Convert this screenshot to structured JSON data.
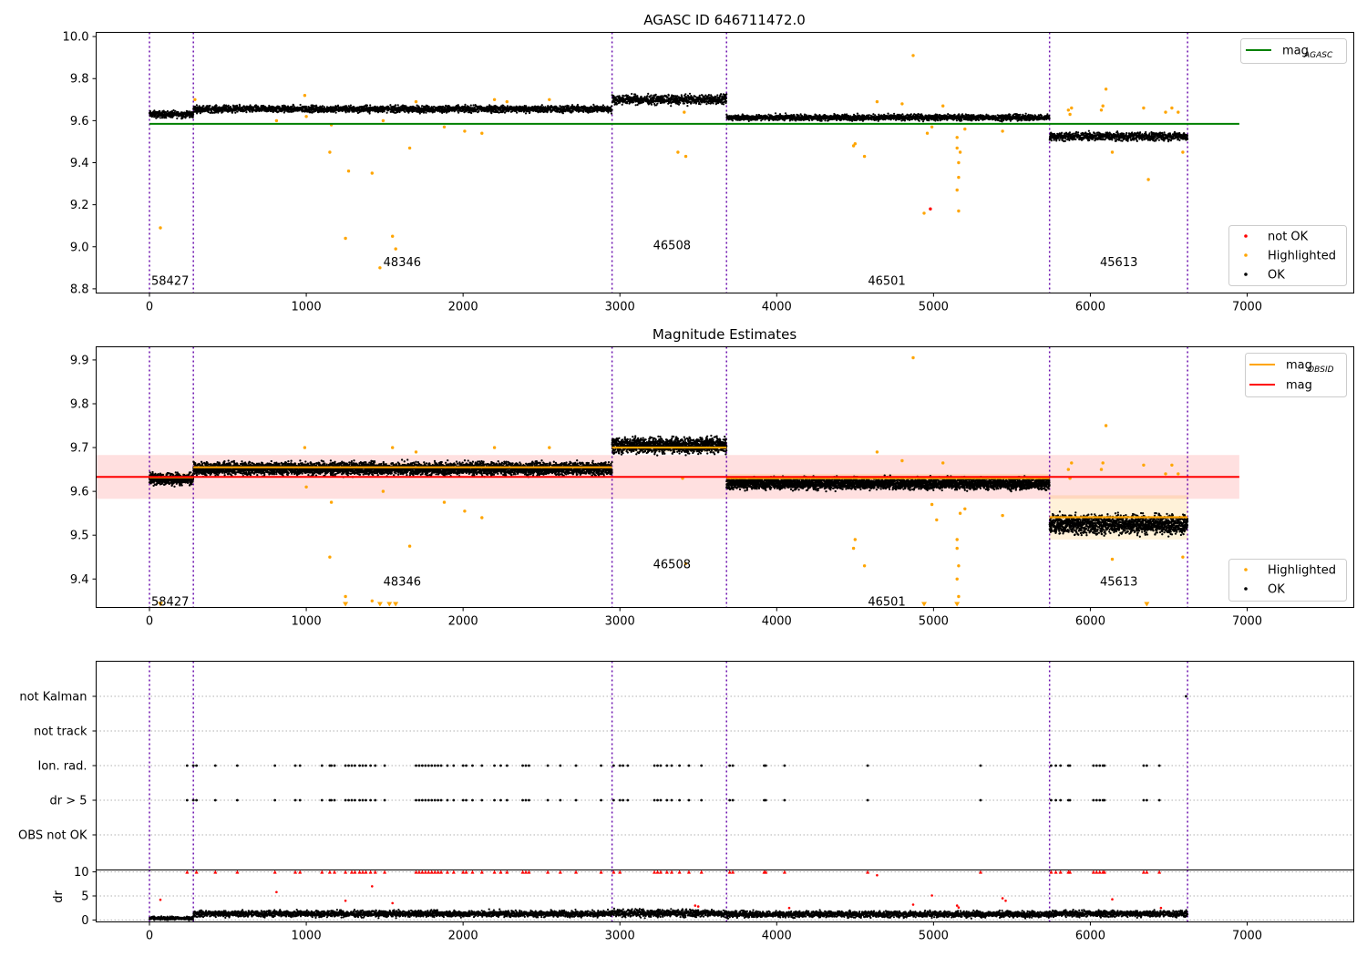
{
  "chart_data": [
    {
      "type": "scatter",
      "title": "AGASC ID 646711472.0",
      "xlim": [
        -340,
        7680
      ],
      "ylim": [
        8.78,
        10.02
      ],
      "x_ticks": [
        0,
        1000,
        2000,
        3000,
        4000,
        5000,
        6000,
        7000
      ],
      "y_ticks": [
        8.8,
        9.0,
        9.2,
        9.4,
        9.6,
        9.8,
        10.0
      ],
      "obs_boundaries": [
        0,
        280,
        2950,
        3680,
        5740,
        6620
      ],
      "obsid_labels": [
        {
          "text": "58427",
          "x": 0,
          "y": 8.84
        },
        {
          "text": "48346",
          "x": 1480,
          "y": 8.93
        },
        {
          "text": "46508",
          "x": 3200,
          "y": 9.01
        },
        {
          "text": "46501",
          "x": 4570,
          "y": 8.84
        },
        {
          "text": "45613",
          "x": 6050,
          "y": 8.93
        }
      ],
      "mag_agasc": 9.585,
      "mag_agasc_range": [
        0,
        6950
      ],
      "ok_segments": [
        {
          "x0": 0,
          "x1": 280,
          "mean": 9.63,
          "spread": 0.015
        },
        {
          "x0": 280,
          "x1": 2950,
          "mean": 9.655,
          "spread": 0.015
        },
        {
          "x0": 2950,
          "x1": 3680,
          "mean": 9.7,
          "spread": 0.02
        },
        {
          "x0": 3680,
          "x1": 5740,
          "mean": 9.615,
          "spread": 0.013
        },
        {
          "x0": 5740,
          "x1": 6620,
          "mean": 9.525,
          "spread": 0.018
        }
      ],
      "highlighted_points": [
        [
          70,
          9.09
        ],
        [
          290,
          9.7
        ],
        [
          810,
          9.6
        ],
        [
          990,
          9.72
        ],
        [
          1000,
          9.62
        ],
        [
          1150,
          9.45
        ],
        [
          1160,
          9.58
        ],
        [
          1250,
          9.04
        ],
        [
          1270,
          9.36
        ],
        [
          1420,
          9.35
        ],
        [
          1470,
          8.9
        ],
        [
          1490,
          9.6
        ],
        [
          1550,
          9.05
        ],
        [
          1570,
          8.99
        ],
        [
          1660,
          9.47
        ],
        [
          1700,
          9.69
        ],
        [
          1880,
          9.57
        ],
        [
          2010,
          9.55
        ],
        [
          2120,
          9.54
        ],
        [
          2200,
          9.7
        ],
        [
          2280,
          9.69
        ],
        [
          2550,
          9.7
        ],
        [
          3370,
          9.45
        ],
        [
          3420,
          9.43
        ],
        [
          3410,
          9.64
        ],
        [
          4490,
          9.48
        ],
        [
          4500,
          9.49
        ],
        [
          4560,
          9.43
        ],
        [
          4640,
          9.69
        ],
        [
          4870,
          9.91
        ],
        [
          4800,
          9.68
        ],
        [
          4940,
          9.16
        ],
        [
          4960,
          9.54
        ],
        [
          4990,
          9.57
        ],
        [
          5060,
          9.67
        ],
        [
          5150,
          9.52
        ],
        [
          5150,
          9.47
        ],
        [
          5160,
          9.4
        ],
        [
          5160,
          9.33
        ],
        [
          5150,
          9.27
        ],
        [
          5160,
          9.17
        ],
        [
          5170,
          9.45
        ],
        [
          5200,
          9.56
        ],
        [
          5440,
          9.55
        ],
        [
          5860,
          9.65
        ],
        [
          5880,
          9.66
        ],
        [
          5870,
          9.63
        ],
        [
          6070,
          9.65
        ],
        [
          6080,
          9.67
        ],
        [
          6100,
          9.75
        ],
        [
          6140,
          9.45
        ],
        [
          6340,
          9.66
        ],
        [
          6370,
          9.32
        ],
        [
          6480,
          9.64
        ],
        [
          6590,
          9.45
        ],
        [
          6520,
          9.66
        ],
        [
          6560,
          9.64
        ]
      ],
      "not_ok_points": [
        [
          4980,
          9.18
        ]
      ],
      "legend_lines": [
        {
          "label": "mag",
          "sub": "AGASC",
          "color": "#008000"
        }
      ],
      "legend_markers": [
        {
          "label": "not OK",
          "color": "#ff0000"
        },
        {
          "label": "Highlighted",
          "color": "#ffa500"
        },
        {
          "label": "OK",
          "color": "#000000"
        }
      ]
    },
    {
      "type": "scatter",
      "title": "Magnitude Estimates",
      "xlim": [
        -340,
        7680
      ],
      "ylim": [
        9.335,
        9.93
      ],
      "x_ticks": [
        0,
        1000,
        2000,
        3000,
        4000,
        5000,
        6000,
        7000
      ],
      "y_ticks": [
        9.4,
        9.5,
        9.6,
        9.7,
        9.8,
        9.9
      ],
      "obs_boundaries": [
        0,
        280,
        2950,
        3680,
        5740,
        6620
      ],
      "obsid_labels": [
        {
          "text": "58427",
          "x": 0,
          "y": 9.35
        },
        {
          "text": "48346",
          "x": 1480,
          "y": 9.395
        },
        {
          "text": "46508",
          "x": 3200,
          "y": 9.435
        },
        {
          "text": "46501",
          "x": 4570,
          "y": 9.35
        },
        {
          "text": "45613",
          "x": 6050,
          "y": 9.395
        }
      ],
      "mag": 9.633,
      "mag_band": [
        9.583,
        9.683
      ],
      "mag_range": [
        -340,
        6950
      ],
      "mag_obsid": [
        {
          "x0": 0,
          "x1": 280,
          "value": 9.632,
          "band": [
            9.622,
            9.642
          ]
        },
        {
          "x0": 280,
          "x1": 2950,
          "value": 9.655,
          "band": [
            9.645,
            9.665
          ]
        },
        {
          "x0": 2950,
          "x1": 3680,
          "value": 9.7,
          "band": [
            9.69,
            9.71
          ]
        },
        {
          "x0": 3680,
          "x1": 5740,
          "value": 9.63,
          "band": [
            9.62,
            9.64
          ]
        },
        {
          "x0": 5740,
          "x1": 6620,
          "value": 9.541,
          "band": [
            9.49,
            9.591
          ]
        }
      ],
      "ok_segments": [
        {
          "x0": 0,
          "x1": 280,
          "mean": 9.628,
          "spread": 0.012
        },
        {
          "x0": 280,
          "x1": 2950,
          "mean": 9.652,
          "spread": 0.013
        },
        {
          "x0": 2950,
          "x1": 3680,
          "mean": 9.705,
          "spread": 0.016
        },
        {
          "x0": 3680,
          "x1": 5740,
          "mean": 9.618,
          "spread": 0.012
        },
        {
          "x0": 5740,
          "x1": 6620,
          "mean": 9.525,
          "spread": 0.02
        }
      ],
      "highlighted_points": [
        [
          990,
          9.7
        ],
        [
          1000,
          9.61
        ],
        [
          1150,
          9.45
        ],
        [
          1160,
          9.575
        ],
        [
          1250,
          9.36
        ],
        [
          1420,
          9.35
        ],
        [
          1490,
          9.6
        ],
        [
          1700,
          9.69
        ],
        [
          1550,
          9.7
        ],
        [
          1660,
          9.475
        ],
        [
          1880,
          9.575
        ],
        [
          2010,
          9.555
        ],
        [
          2120,
          9.54
        ],
        [
          2200,
          9.7
        ],
        [
          2550,
          9.7
        ],
        [
          3420,
          9.435
        ],
        [
          3400,
          9.63
        ],
        [
          4490,
          9.47
        ],
        [
          4500,
          9.49
        ],
        [
          4560,
          9.43
        ],
        [
          4640,
          9.69
        ],
        [
          4870,
          9.905
        ],
        [
          4800,
          9.67
        ],
        [
          4990,
          9.57
        ],
        [
          5020,
          9.535
        ],
        [
          5060,
          9.665
        ],
        [
          5150,
          9.49
        ],
        [
          5150,
          9.47
        ],
        [
          5160,
          9.43
        ],
        [
          5150,
          9.4
        ],
        [
          5160,
          9.36
        ],
        [
          5200,
          9.56
        ],
        [
          5170,
          9.55
        ],
        [
          5440,
          9.545
        ],
        [
          5860,
          9.65
        ],
        [
          5880,
          9.665
        ],
        [
          5870,
          9.63
        ],
        [
          6070,
          9.65
        ],
        [
          6080,
          9.665
        ],
        [
          6100,
          9.75
        ],
        [
          6140,
          9.445
        ],
        [
          6340,
          9.66
        ],
        [
          6480,
          9.64
        ],
        [
          6590,
          9.45
        ],
        [
          6520,
          9.66
        ],
        [
          6560,
          9.64
        ]
      ],
      "below_range_markers": [
        70,
        1250,
        1470,
        1530,
        1570,
        4940,
        5150,
        6360
      ],
      "legend_lines": [
        {
          "label": "mag",
          "sub": "OBSID",
          "color": "#ffa500"
        },
        {
          "label": "mag",
          "sub": "",
          "color": "#ff0000"
        }
      ],
      "legend_markers": [
        {
          "label": "Highlighted",
          "color": "#ffa500"
        },
        {
          "label": "OK",
          "color": "#000000"
        }
      ]
    },
    {
      "type": "scatter",
      "title": "",
      "xlim": [
        -340,
        7680
      ],
      "categories": [
        "not Kalman",
        "not track",
        "Ion. rad.",
        "dr > 5",
        "OBS not OK"
      ],
      "obs_boundaries": [
        0,
        280,
        2950,
        3680,
        5740,
        6620
      ],
      "flag_x": [
        240,
        280,
        300,
        420,
        560,
        800,
        930,
        960,
        1100,
        1150,
        1160,
        1180,
        1250,
        1270,
        1290,
        1310,
        1340,
        1360,
        1380,
        1410,
        1440,
        1500,
        1700,
        1720,
        1740,
        1760,
        1780,
        1800,
        1820,
        1840,
        1860,
        1900,
        1940,
        2000,
        2020,
        2060,
        2120,
        2200,
        2240,
        2280,
        2380,
        2400,
        2420,
        2540,
        2620,
        2720,
        2880,
        2960,
        3000,
        3020,
        3050,
        3220,
        3240,
        3260,
        3300,
        3330,
        3380,
        3440,
        3520,
        3700,
        3720,
        3920,
        3930,
        4050,
        4580,
        5300,
        5750,
        5780,
        5810,
        5860,
        5870,
        6020,
        6040,
        6060,
        6080,
        6090,
        6340,
        6360,
        6440
      ],
      "not_kalman_x": [
        6610
      ]
    },
    {
      "type": "scatter",
      "title": "",
      "xlim": [
        -340,
        7680
      ],
      "ylim": [
        -0.4,
        10.4
      ],
      "ylabel": "dr",
      "y_ticks": [
        0,
        5,
        10
      ],
      "obs_boundaries": [
        0,
        280,
        2950,
        3680,
        5740,
        6620
      ],
      "capped_x": [
        240,
        300,
        420,
        560,
        800,
        930,
        960,
        1100,
        1150,
        1180,
        1250,
        1290,
        1310,
        1340,
        1360,
        1380,
        1410,
        1440,
        1500,
        1700,
        1720,
        1740,
        1760,
        1780,
        1800,
        1820,
        1840,
        1860,
        1900,
        1940,
        2000,
        2020,
        2060,
        2120,
        2200,
        2240,
        2280,
        2380,
        2400,
        2420,
        2540,
        2620,
        2720,
        2880,
        2960,
        3000,
        3220,
        3240,
        3260,
        3300,
        3330,
        3380,
        3440,
        3520,
        3700,
        3720,
        3920,
        3930,
        4050,
        4580,
        5300,
        5750,
        5780,
        5810,
        5860,
        5870,
        6020,
        6040,
        6060,
        6080,
        6090,
        6340,
        6360,
        6440
      ],
      "red_points": [
        [
          70,
          4.2
        ],
        [
          810,
          5.8
        ],
        [
          1250,
          4.0
        ],
        [
          1420,
          7.0
        ],
        [
          1550,
          3.5
        ],
        [
          3480,
          3.0
        ],
        [
          3500,
          2.8
        ],
        [
          4080,
          2.5
        ],
        [
          4640,
          9.3
        ],
        [
          4870,
          3.2
        ],
        [
          4990,
          5.1
        ],
        [
          5150,
          3.0
        ],
        [
          5160,
          2.6
        ],
        [
          5440,
          4.5
        ],
        [
          5460,
          4.0
        ],
        [
          6140,
          4.3
        ],
        [
          6450,
          2.5
        ]
      ],
      "ok_segments": [
        {
          "x0": 0,
          "x1": 280,
          "mean": 0.35,
          "spread": 0.3
        },
        {
          "x0": 280,
          "x1": 2950,
          "mean": 1.3,
          "spread": 0.6
        },
        {
          "x0": 2950,
          "x1": 3680,
          "mean": 1.4,
          "spread": 0.7
        },
        {
          "x0": 3680,
          "x1": 5740,
          "mean": 1.2,
          "spread": 0.6
        },
        {
          "x0": 5740,
          "x1": 6620,
          "mean": 1.3,
          "spread": 0.6
        }
      ]
    }
  ]
}
